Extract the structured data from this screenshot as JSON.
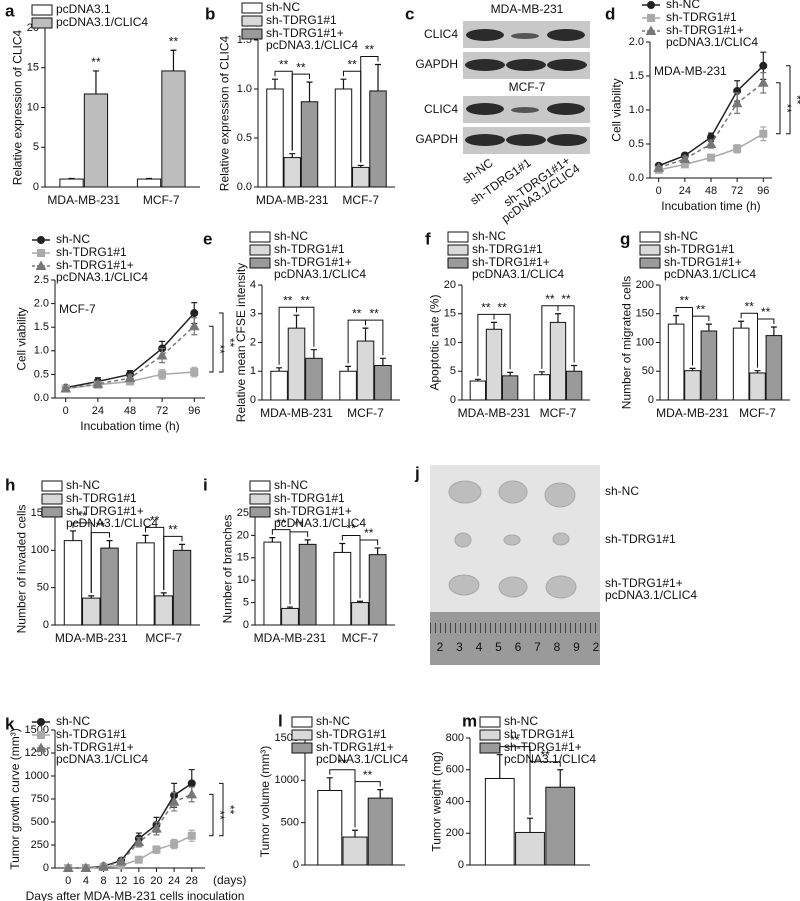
{
  "chart_data": [
    {
      "type": "bar",
      "panel": "a",
      "ylabel": "Relative expression of CLIC4",
      "categories": [
        "MDA-MB-231",
        "MCF-7"
      ],
      "series": [
        {
          "name": "pcDNA3.1",
          "color": "#ffffff",
          "values": [
            1.0,
            1.0
          ],
          "errors": [
            0.08,
            0.08
          ]
        },
        {
          "name": "pcDNA3.1/CLIC4",
          "color": "#bdbdbd",
          "values": [
            11.7,
            14.6
          ],
          "errors": [
            2.9,
            2.6
          ]
        }
      ],
      "ylim": [
        0,
        20
      ],
      "yticks": [
        0,
        5,
        10,
        15,
        20
      ],
      "annotations": [
        "**",
        "**"
      ]
    },
    {
      "type": "bar",
      "panel": "b",
      "ylabel": "Relative expression of CLIC4",
      "categories": [
        "MDA-MB-231",
        "MCF-7"
      ],
      "series": [
        {
          "name": "sh-NC",
          "color": "#ffffff",
          "values": [
            1.0,
            1.0
          ],
          "errors": [
            0.1,
            0.1
          ]
        },
        {
          "name": "sh-TDRG1#1",
          "color": "#d9d9d9",
          "values": [
            0.3,
            0.2
          ],
          "errors": [
            0.04,
            0.02
          ]
        },
        {
          "name": "sh-TDRG1#1+ pcDNA3.1/CLIC4",
          "color": "#9a9a9a",
          "values": [
            0.87,
            0.98
          ],
          "errors": [
            0.2,
            0.27
          ]
        }
      ],
      "ylim": [
        0,
        1.5
      ],
      "yticks": [
        {
          "value": 0,
          "label": "0.0"
        },
        0.5,
        {
          "value": 1,
          "label": "1.0"
        },
        1.5
      ],
      "annotations": [
        "**",
        "**",
        "**",
        "**"
      ]
    },
    {
      "type": "line",
      "panel": "d",
      "ylabel": "Cell viability",
      "xlabel": "Incubation time (h)",
      "inset_label": "MDA-MB-231",
      "x": [
        0,
        24,
        48,
        72,
        96
      ],
      "xlim": [
        -8,
        104
      ],
      "xticks": [
        0,
        24,
        48,
        72,
        96
      ],
      "series": [
        {
          "name": "sh-NC",
          "color": "#222222",
          "marker": "circle",
          "values": [
            0.18,
            0.33,
            0.6,
            1.28,
            1.65
          ],
          "errors": [
            0.02,
            0.04,
            0.06,
            0.15,
            0.2
          ]
        },
        {
          "name": "sh-TDRG1#1",
          "color": "#aaaaaa",
          "marker": "square",
          "values": [
            0.12,
            0.2,
            0.3,
            0.43,
            0.65
          ],
          "errors": [
            0.02,
            0.03,
            0.04,
            0.06,
            0.1
          ]
        },
        {
          "name": "sh-TDRG1#1+ pcDNA3.1/CLIC4",
          "color": "#777777",
          "marker": "triangle",
          "dashed": true,
          "values": [
            0.15,
            0.28,
            0.5,
            1.1,
            1.4
          ],
          "errors": [
            0.02,
            0.04,
            0.06,
            0.15,
            0.15
          ]
        }
      ],
      "ylim": [
        0,
        2
      ],
      "yticks": [
        {
          "value": 0,
          "label": "0.0"
        },
        0.5,
        {
          "value": 1,
          "label": "1.0"
        },
        1.5,
        {
          "value": 2,
          "label": "2.0"
        }
      ],
      "annotations": [
        "**",
        "**"
      ]
    },
    {
      "type": "line",
      "ylabel": "Cell viability",
      "xlabel": "Incubation time (h)",
      "inset_label": "MCF-7",
      "x": [
        0,
        24,
        48,
        72,
        96
      ],
      "xlim": [
        -8,
        104
      ],
      "xticks": [
        0,
        24,
        48,
        72,
        96
      ],
      "series": [
        {
          "name": "sh-NC",
          "color": "#222222",
          "marker": "circle",
          "values": [
            0.22,
            0.35,
            0.5,
            1.05,
            1.8
          ],
          "errors": [
            0.03,
            0.08,
            0.08,
            0.15,
            0.22
          ]
        },
        {
          "name": "sh-TDRG1#1",
          "color": "#aaaaaa",
          "marker": "square",
          "values": [
            0.2,
            0.28,
            0.35,
            0.5,
            0.55
          ],
          "errors": [
            0.02,
            0.04,
            0.05,
            0.1,
            0.1
          ]
        },
        {
          "name": "sh-TDRG1#1+ pcDNA3.1/CLIC4",
          "color": "#777777",
          "marker": "triangle",
          "dashed": true,
          "values": [
            0.2,
            0.3,
            0.42,
            0.9,
            1.52
          ],
          "errors": [
            0.03,
            0.05,
            0.07,
            0.15,
            0.18
          ]
        }
      ],
      "ylim": [
        0,
        2.5
      ],
      "yticks": [
        {
          "value": 0,
          "label": "0.0"
        },
        0.5,
        {
          "value": 1,
          "label": "1.0"
        },
        1.5,
        {
          "value": 2,
          "label": "2.0"
        },
        2.5
      ],
      "annotations": [
        "**",
        "**"
      ]
    },
    {
      "type": "bar",
      "panel": "e",
      "ylabel": "Relative mean CFSE intensity",
      "categories": [
        "MDA-MB-231",
        "MCF-7"
      ],
      "series": [
        {
          "name": "sh-NC",
          "color": "#ffffff",
          "values": [
            1.0,
            1.0
          ],
          "errors": [
            0.12,
            0.17
          ]
        },
        {
          "name": "sh-TDRG1#1",
          "color": "#d9d9d9",
          "values": [
            2.5,
            2.05
          ],
          "errors": [
            0.45,
            0.45
          ]
        },
        {
          "name": "sh-TDRG1#1+ pcDNA3.1/CLIC4",
          "color": "#9a9a9a",
          "values": [
            1.45,
            1.2
          ],
          "errors": [
            0.3,
            0.25
          ]
        }
      ],
      "ylim": [
        0,
        4
      ],
      "yticks": [
        0,
        1,
        2,
        3,
        4
      ],
      "annotations": [
        "**",
        "**",
        "**",
        "**"
      ]
    },
    {
      "type": "bar",
      "panel": "f",
      "ylabel": "Apoptotic rate (%)",
      "categories": [
        "MDA-MB-231",
        "MCF-7"
      ],
      "series": [
        {
          "name": "sh-NC",
          "color": "#ffffff",
          "values": [
            3.3,
            4.4
          ],
          "errors": [
            0.3,
            0.5
          ]
        },
        {
          "name": "sh-TDRG1#1",
          "color": "#d9d9d9",
          "values": [
            12.3,
            13.5
          ],
          "errors": [
            1.2,
            1.5
          ]
        },
        {
          "name": "sh-TDRG1#1+ pcDNA3.1/CLIC4",
          "color": "#9a9a9a",
          "values": [
            4.2,
            5.0
          ],
          "errors": [
            0.6,
            1.0
          ]
        }
      ],
      "ylim": [
        0,
        20
      ],
      "yticks": [
        0,
        5,
        10,
        15,
        20
      ],
      "annotations": [
        "**",
        "**",
        "**",
        "**"
      ]
    },
    {
      "type": "bar",
      "panel": "g",
      "ylabel": "Number of migrated cells",
      "categories": [
        "MDA-MB-231",
        "MCF-7"
      ],
      "series": [
        {
          "name": "sh-NC",
          "color": "#ffffff",
          "values": [
            132,
            125
          ],
          "errors": [
            15,
            12
          ]
        },
        {
          "name": "sh-TDRG1#1",
          "color": "#d9d9d9",
          "values": [
            51,
            47
          ],
          "errors": [
            4,
            4
          ]
        },
        {
          "name": "sh-TDRG1#1+ pcDNA3.1/CLIC4",
          "color": "#9a9a9a",
          "values": [
            120,
            112
          ],
          "errors": [
            12,
            15
          ]
        }
      ],
      "ylim": [
        0,
        200
      ],
      "yticks": [
        0,
        50,
        100,
        150,
        200
      ],
      "annotations": [
        "**",
        "**",
        "**",
        "**"
      ]
    },
    {
      "type": "bar",
      "panel": "h",
      "ylabel": "Number of invaded cells",
      "categories": [
        "MDA-MB-231",
        "MCF-7"
      ],
      "series": [
        {
          "name": "sh-NC",
          "color": "#ffffff",
          "values": [
            113,
            110
          ],
          "errors": [
            13,
            10
          ]
        },
        {
          "name": "sh-TDRG1#1",
          "color": "#d9d9d9",
          "values": [
            36,
            39
          ],
          "errors": [
            3,
            4
          ]
        },
        {
          "name": "sh-TDRG1#1+ pcDNA3.1/CLIC4",
          "color": "#9a9a9a",
          "values": [
            103,
            100
          ],
          "errors": [
            10,
            8
          ]
        }
      ],
      "ylim": [
        0,
        150
      ],
      "yticks": [
        0,
        50,
        100,
        150
      ],
      "annotations": [
        "**",
        "**",
        "**",
        "**"
      ]
    },
    {
      "type": "bar",
      "panel": "i",
      "ylabel": "Number of branches",
      "categories": [
        "MDA-MB-231",
        "MCF-7"
      ],
      "series": [
        {
          "name": "sh-NC",
          "color": "#ffffff",
          "values": [
            18.5,
            16.2
          ],
          "errors": [
            1,
            2
          ]
        },
        {
          "name": "sh-TDRG1#1",
          "color": "#d9d9d9",
          "values": [
            3.7,
            5.0
          ],
          "errors": [
            0.3,
            0.3
          ]
        },
        {
          "name": "sh-TDRG1#1+ pcDNA3.1/CLIC4",
          "color": "#9a9a9a",
          "values": [
            18,
            15.7
          ],
          "errors": [
            1,
            1.5
          ]
        }
      ],
      "ylim": [
        0,
        25
      ],
      "yticks": [
        0,
        5,
        10,
        15,
        20,
        25
      ],
      "annotations": [
        "**",
        "**",
        "**",
        "**"
      ]
    },
    {
      "type": "line",
      "panel": "k",
      "ylabel": "Tumor growth curve (mm³)",
      "xlabel": "Days after MDA-MB-231 cells inoculation",
      "x_unit": "(days)",
      "x": [
        0,
        4,
        8,
        12,
        16,
        20,
        24,
        28
      ],
      "xlim": [
        -3,
        31
      ],
      "xticks": [
        0,
        4,
        8,
        12,
        16,
        20,
        24,
        28
      ],
      "series": [
        {
          "name": "sh-NC",
          "color": "#222222",
          "marker": "circle",
          "values": [
            0,
            0,
            20,
            80,
            320,
            470,
            790,
            920
          ],
          "errors": [
            5,
            5,
            10,
            20,
            60,
            80,
            130,
            150
          ]
        },
        {
          "name": "sh-TDRG1#1",
          "color": "#aaaaaa",
          "marker": "square",
          "values": [
            0,
            0,
            10,
            30,
            90,
            200,
            260,
            350
          ],
          "errors": [
            5,
            5,
            5,
            10,
            20,
            40,
            50,
            60
          ]
        },
        {
          "name": "sh-TDRG1#1+ pcDNA3.1/CLIC4",
          "color": "#777777",
          "marker": "triangle",
          "dashed": true,
          "values": [
            0,
            0,
            15,
            70,
            280,
            430,
            720,
            800
          ],
          "errors": [
            5,
            5,
            10,
            20,
            50,
            70,
            100,
            80
          ]
        }
      ],
      "ylim": [
        0,
        1500
      ],
      "yticks": [
        0,
        250,
        500,
        750,
        1000,
        1250,
        1500
      ],
      "annotations": [
        "**",
        "**"
      ]
    },
    {
      "type": "bar",
      "panel": "l",
      "ylabel": "Tumor volume (mm³)",
      "categories": [
        null
      ],
      "series": [
        {
          "name": "sh-NC",
          "color": "#ffffff",
          "values": [
            880
          ],
          "errors": [
            150
          ]
        },
        {
          "name": "sh-TDRG1#1",
          "color": "#d9d9d9",
          "values": [
            330
          ],
          "errors": [
            80
          ]
        },
        {
          "name": "sh-TDRG1#1+ pcDNA3.1/CLIC4",
          "color": "#9a9a9a",
          "values": [
            790
          ],
          "errors": [
            100
          ]
        }
      ],
      "ylim": [
        0,
        1500
      ],
      "yticks": [
        0,
        500,
        1000,
        1500
      ],
      "annotations": [
        "**",
        "**"
      ]
    },
    {
      "type": "bar",
      "panel": "m",
      "ylabel": "Tumor weight (mg)",
      "categories": [
        null
      ],
      "series": [
        {
          "name": "sh-NC",
          "color": "#ffffff",
          "values": [
            545
          ],
          "errors": [
            150
          ]
        },
        {
          "name": "sh-TDRG1#1",
          "color": "#d9d9d9",
          "values": [
            205
          ],
          "errors": [
            90
          ]
        },
        {
          "name": "sh-TDRG1#1+ pcDNA3.1/CLIC4",
          "color": "#9a9a9a",
          "values": [
            490
          ],
          "errors": [
            110
          ]
        }
      ],
      "ylim": [
        0,
        800
      ],
      "yticks": [
        0,
        200,
        400,
        600,
        800
      ],
      "annotations": [
        "**",
        "**"
      ]
    }
  ],
  "blot": {
    "panel": "c",
    "cell_lines": [
      "MDA-MB-231",
      "MCF-7"
    ],
    "proteins": [
      "CLIC4",
      "GAPDH"
    ],
    "lanes": [
      "sh-NC",
      "sh-TDRG1#1",
      "sh-TDRG1#1+ pcDNA3.1/CLIC4"
    ]
  },
  "tumor_photo": {
    "panel": "j",
    "groups": [
      "sh-NC",
      "sh-TDRG1#1",
      "sh-TDRG1#1+ pcDNA3.1/CLIC4"
    ],
    "ruler": [
      "2",
      "3",
      "4",
      "5",
      "6",
      "7",
      "8",
      "9",
      "2"
    ]
  }
}
